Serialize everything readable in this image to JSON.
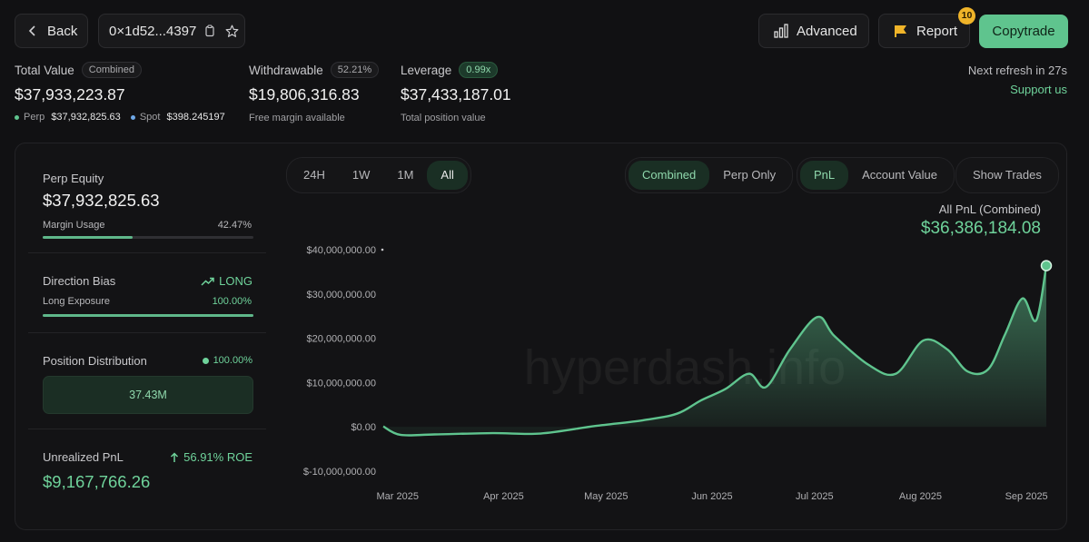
{
  "header": {
    "back_label": "Back",
    "address": "0×1d52...4397",
    "advanced_label": "Advanced",
    "report_label": "Report",
    "report_badge": "10",
    "copytrade_label": "Copytrade",
    "next_refresh": "Next refresh in 27s",
    "support_label": "Support us"
  },
  "summary": {
    "total_value_label": "Total Value",
    "total_value_badge": "Combined",
    "total_value": "$37,933,223.87",
    "perp_label": "Perp",
    "perp_value": "$37,932,825.63",
    "spot_label": "Spot",
    "spot_value": "$398.245197",
    "withdrawable_label": "Withdrawable",
    "withdrawable_badge": "52.21%",
    "withdrawable_value": "$19,806,316.83",
    "withdrawable_sub": "Free margin available",
    "leverage_label": "Leverage",
    "leverage_badge": "0.99x",
    "leverage_value": "$37,433,187.01",
    "leverage_sub": "Total position value"
  },
  "sidebar": {
    "perp_equity_label": "Perp Equity",
    "perp_equity_value": "$37,932,825.63",
    "margin_usage_label": "Margin Usage",
    "margin_usage_value": "42.47%",
    "margin_usage_fraction": 0.4247,
    "direction_label": "Direction Bias",
    "direction_value": "LONG",
    "long_exposure_label": "Long Exposure",
    "long_exposure_value": "100.00%",
    "long_exposure_fraction": 1.0,
    "position_dist_label": "Position Distribution",
    "position_dist_value": "100.00%",
    "position_dist_amount": "37.43M",
    "unrealized_label": "Unrealized PnL",
    "roe_value": "56.91% ROE",
    "unrealized_value": "$9,167,766.26"
  },
  "controls": {
    "ranges": [
      "24H",
      "1W",
      "1M",
      "All"
    ],
    "active_range": "All",
    "scope": [
      "Combined",
      "Perp Only"
    ],
    "active_scope": "Combined",
    "metric": [
      "PnL",
      "Account Value"
    ],
    "active_metric": "PnL",
    "show_trades_label": "Show Trades"
  },
  "chart_header": {
    "title": "All PnL (Combined)",
    "value": "$36,386,184.08"
  },
  "chart_data": {
    "type": "area",
    "x": [
      "2025-02-28",
      "2025-03-05",
      "2025-03-15",
      "2025-04-01",
      "2025-04-15",
      "2025-05-01",
      "2025-05-15",
      "2025-05-25",
      "2025-06-01",
      "2025-06-08",
      "2025-06-15",
      "2025-06-20",
      "2025-06-27",
      "2025-07-05",
      "2025-07-10",
      "2025-07-20",
      "2025-07-28",
      "2025-08-05",
      "2025-08-12",
      "2025-08-18",
      "2025-08-24",
      "2025-08-29",
      "2025-09-03",
      "2025-09-07",
      "2025-09-10"
    ],
    "values": [
      0.1,
      -1.8,
      -1.7,
      -1.4,
      -1.5,
      0.2,
      1.5,
      3.0,
      6.0,
      8.5,
      12.0,
      9.0,
      17.5,
      24.8,
      20.5,
      14.0,
      12.0,
      19.5,
      17.5,
      12.5,
      13.0,
      21.0,
      29.0,
      24.0,
      36.39
    ],
    "x_ticks": [
      "Mar 2025",
      "Apr 2025",
      "May 2025",
      "Jun 2025",
      "Jul 2025",
      "Aug 2025",
      "Sep 2025"
    ],
    "y_ticks": [
      "$40,000,000.00",
      "$30,000,000.00",
      "$20,000,000.00",
      "$10,000,000.00",
      "$0.00",
      "$-10,000,000.00"
    ],
    "ylim": [
      -10,
      40
    ],
    "y_unit": "millions USD",
    "watermark": "hyperdash.info",
    "color": "#5fc48e"
  }
}
